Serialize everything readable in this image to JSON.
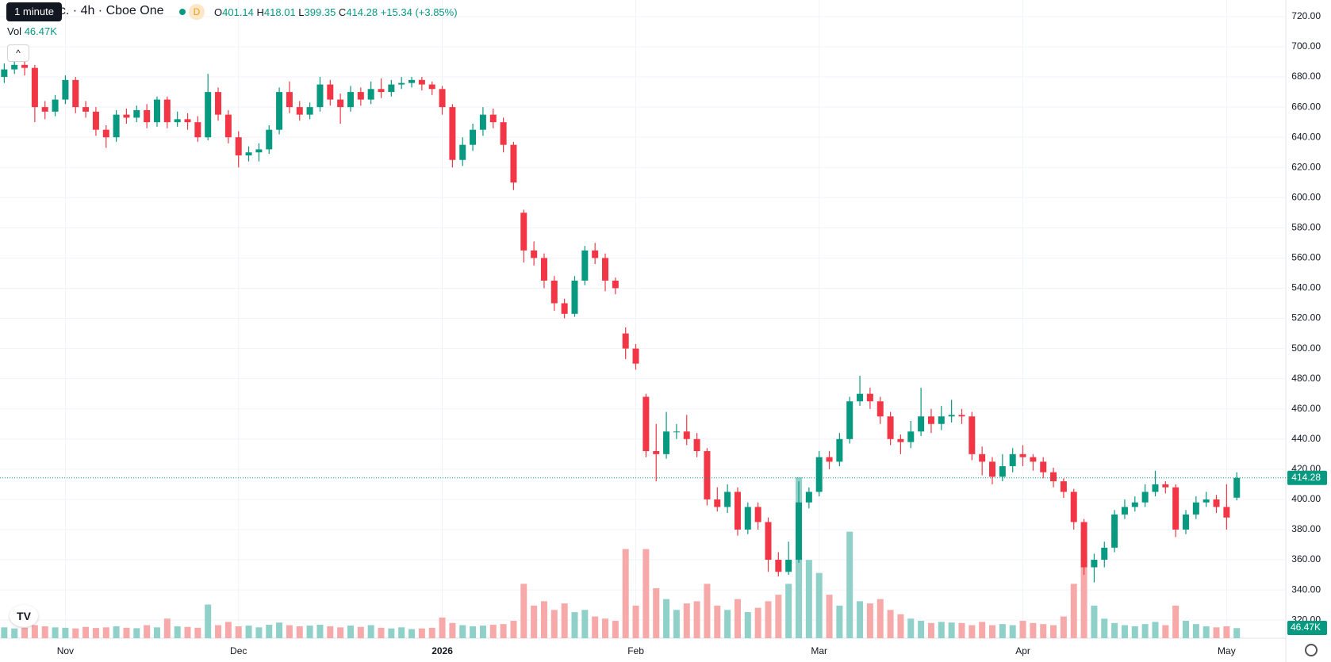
{
  "header": {
    "tooltip": "1 minute",
    "symbol": "nc. · 4h · Cboe One",
    "badge": "D",
    "o": "O",
    "h": "H",
    "l": "L",
    "c": "C",
    "change": "+15.34 (+3.85%)",
    "vol_label": "46.47K"
  },
  "chart_data": {
    "type": "candlestick",
    "categories": [
      null,
      null,
      null,
      null,
      null,
      null,
      "Nov",
      null,
      null,
      null,
      null,
      null,
      null,
      null,
      null,
      null,
      null,
      null,
      null,
      null,
      null,
      null,
      null,
      "Dec",
      null,
      null,
      null,
      null,
      null,
      null,
      null,
      null,
      null,
      null,
      null,
      null,
      null,
      null,
      null,
      null,
      null,
      null,
      null,
      "2026",
      null,
      null,
      null,
      null,
      null,
      null,
      null,
      null,
      null,
      null,
      null,
      null,
      null,
      null,
      null,
      null,
      null,
      null,
      "Feb",
      null,
      null,
      null,
      null,
      null,
      null,
      null,
      null,
      null,
      null,
      null,
      null,
      null,
      null,
      null,
      null,
      null,
      "Mar",
      null,
      null,
      null,
      null,
      null,
      null,
      null,
      null,
      null,
      null,
      null,
      null,
      null,
      null,
      null,
      null,
      null,
      null,
      null,
      "Apr",
      null,
      null,
      null,
      null,
      null,
      null,
      null,
      null,
      null,
      null,
      null,
      null,
      null,
      null,
      null,
      null,
      null,
      null,
      null,
      "May",
      null
    ],
    "open": [
      680,
      685,
      688,
      686,
      660,
      657,
      665,
      678,
      660,
      657,
      645,
      640,
      655,
      653,
      658,
      650,
      665,
      650,
      652,
      650,
      640,
      670,
      655,
      640,
      628,
      630,
      632,
      645,
      670,
      660,
      655,
      660,
      675,
      665,
      660,
      670,
      665,
      672,
      670,
      675,
      676,
      678,
      675,
      672,
      660,
      625,
      635,
      645,
      655,
      650,
      635,
      590,
      565,
      560,
      545,
      530,
      523,
      545,
      565,
      560,
      545,
      510,
      500,
      468,
      432,
      430,
      445,
      445,
      440,
      432,
      400,
      395,
      405,
      380,
      395,
      385,
      360,
      352,
      360,
      398,
      405,
      428,
      425,
      440,
      465,
      470,
      465,
      455,
      440,
      438,
      445,
      455,
      450,
      455,
      456,
      455,
      430,
      425,
      415,
      422,
      430,
      428,
      425,
      418,
      412,
      405,
      385,
      355,
      360,
      368,
      390,
      395,
      398,
      405,
      410,
      408,
      380,
      390,
      398,
      400,
      395,
      401.14
    ],
    "high": [
      689,
      692,
      690,
      688,
      664,
      668,
      681,
      680,
      664,
      660,
      648,
      658,
      659,
      661,
      662,
      667,
      667,
      657,
      656,
      654,
      682,
      673,
      658,
      644,
      634,
      636,
      648,
      673,
      677,
      664,
      663,
      680,
      678,
      669,
      674,
      673,
      677,
      679,
      678,
      680,
      680,
      680,
      677,
      674,
      662,
      640,
      649,
      660,
      659,
      653,
      637,
      592,
      571,
      563,
      548,
      533,
      548,
      568,
      570,
      563,
      547,
      514,
      503,
      470,
      450,
      458,
      450,
      456,
      444,
      434,
      408,
      410,
      408,
      398,
      398,
      388,
      365,
      372,
      412,
      408,
      432,
      432,
      444,
      468,
      482,
      474,
      468,
      458,
      443,
      452,
      474,
      460,
      462,
      466,
      460,
      458,
      435,
      428,
      430,
      434,
      436,
      430,
      428,
      421,
      414,
      407,
      387,
      364,
      372,
      393,
      400,
      402,
      410,
      419,
      412,
      410,
      393,
      402,
      405,
      403,
      410,
      418.01
    ],
    "low": [
      676,
      682,
      681,
      650,
      652,
      654,
      662,
      656,
      653,
      641,
      633,
      637,
      649,
      650,
      646,
      647,
      646,
      647,
      645,
      637,
      638,
      651,
      636,
      620,
      624,
      624,
      629,
      642,
      656,
      651,
      652,
      657,
      661,
      649,
      657,
      661,
      662,
      666,
      667,
      672,
      673,
      671,
      668,
      655,
      620,
      621,
      631,
      641,
      646,
      630,
      605,
      557,
      555,
      540,
      525,
      520,
      521,
      542,
      556,
      538,
      536,
      493,
      486,
      428,
      412,
      427,
      440,
      436,
      428,
      396,
      392,
      391,
      376,
      377,
      380,
      352,
      349,
      350,
      358,
      394,
      402,
      420,
      422,
      437,
      462,
      460,
      450,
      436,
      430,
      434,
      442,
      444,
      446,
      451,
      450,
      426,
      416,
      410,
      412,
      418,
      422,
      419,
      414,
      408,
      401,
      380,
      350,
      345,
      355,
      365,
      387,
      392,
      395,
      402,
      404,
      375,
      377,
      387,
      395,
      391,
      380,
      399.35
    ],
    "close": [
      685,
      688,
      686,
      660,
      657,
      665,
      678,
      660,
      657,
      645,
      640,
      655,
      653,
      658,
      650,
      665,
      650,
      652,
      650,
      640,
      670,
      655,
      640,
      628,
      630,
      632,
      645,
      670,
      660,
      655,
      660,
      675,
      665,
      660,
      670,
      665,
      672,
      670,
      675,
      676,
      678,
      675,
      672,
      660,
      625,
      635,
      645,
      655,
      650,
      635,
      610,
      565,
      560,
      545,
      530,
      523,
      545,
      565,
      560,
      545,
      540,
      500,
      490,
      432,
      430,
      445,
      445,
      440,
      432,
      400,
      395,
      405,
      380,
      395,
      385,
      360,
      352,
      360,
      398,
      405,
      428,
      425,
      440,
      465,
      470,
      465,
      455,
      440,
      438,
      445,
      455,
      450,
      455,
      456,
      455,
      430,
      425,
      415,
      422,
      430,
      428,
      425,
      418,
      412,
      405,
      385,
      355,
      360,
      368,
      390,
      395,
      398,
      405,
      410,
      408,
      380,
      390,
      398,
      400,
      395,
      388,
      414.28
    ],
    "volume": {
      "name": "Vol",
      "values": [
        50000,
        45000,
        48000,
        60000,
        55000,
        50000,
        48000,
        45000,
        52000,
        47000,
        50000,
        55000,
        48000,
        46000,
        60000,
        50000,
        90000,
        55000,
        52000,
        48000,
        155000,
        60000,
        75000,
        55000,
        58000,
        50000,
        62000,
        72000,
        60000,
        55000,
        58000,
        62000,
        55000,
        50000,
        58000,
        52000,
        60000,
        48000,
        45000,
        50000,
        42000,
        45000,
        48000,
        95000,
        70000,
        60000,
        55000,
        58000,
        62000,
        65000,
        80000,
        250000,
        150000,
        170000,
        130000,
        160000,
        120000,
        130000,
        100000,
        90000,
        80000,
        410000,
        150000,
        410000,
        230000,
        180000,
        130000,
        160000,
        170000,
        250000,
        150000,
        130000,
        180000,
        120000,
        140000,
        170000,
        200000,
        250000,
        740000,
        360000,
        300000,
        200000,
        150000,
        490000,
        170000,
        160000,
        180000,
        130000,
        110000,
        90000,
        80000,
        70000,
        75000,
        72000,
        70000,
        60000,
        75000,
        60000,
        65000,
        60000,
        80000,
        70000,
        65000,
        60000,
        100000,
        250000,
        380000,
        150000,
        90000,
        70000,
        60000,
        55000,
        65000,
        75000,
        60000,
        150000,
        80000,
        65000,
        55000,
        50000,
        55000,
        46470
      ]
    },
    "up_color": "#089981",
    "down_color": "#f23645",
    "up_volume_color": "#8fd1c8",
    "down_volume_color": "#f7a9a9",
    "ylim": [
      308,
      731
    ],
    "yticks": [
      {
        "value": 320,
        "label": "320.00"
      },
      {
        "value": 340,
        "label": "340.00"
      },
      {
        "value": 360,
        "label": "360.00"
      },
      {
        "value": 380,
        "label": "380.00"
      },
      {
        "value": 400,
        "label": "400.00"
      },
      {
        "value": 420,
        "label": "420.00"
      },
      {
        "value": 440,
        "label": "440.00"
      },
      {
        "value": 460,
        "label": "460.00"
      },
      {
        "value": 480,
        "label": "480.00"
      },
      {
        "value": 500,
        "label": "500.00"
      },
      {
        "value": 520,
        "label": "520.00"
      },
      {
        "value": 540,
        "label": "540.00"
      },
      {
        "value": 560,
        "label": "560.00"
      },
      {
        "value": 580,
        "label": "580.00"
      },
      {
        "value": 600,
        "label": "600.00"
      },
      {
        "value": 620,
        "label": "620.00"
      },
      {
        "value": 640,
        "label": "640.00"
      },
      {
        "value": 660,
        "label": "660.00"
      },
      {
        "value": 680,
        "label": "680.00"
      },
      {
        "value": 700,
        "label": "700.00"
      },
      {
        "value": 720,
        "label": "720.00"
      }
    ],
    "grid": true
  }
}
